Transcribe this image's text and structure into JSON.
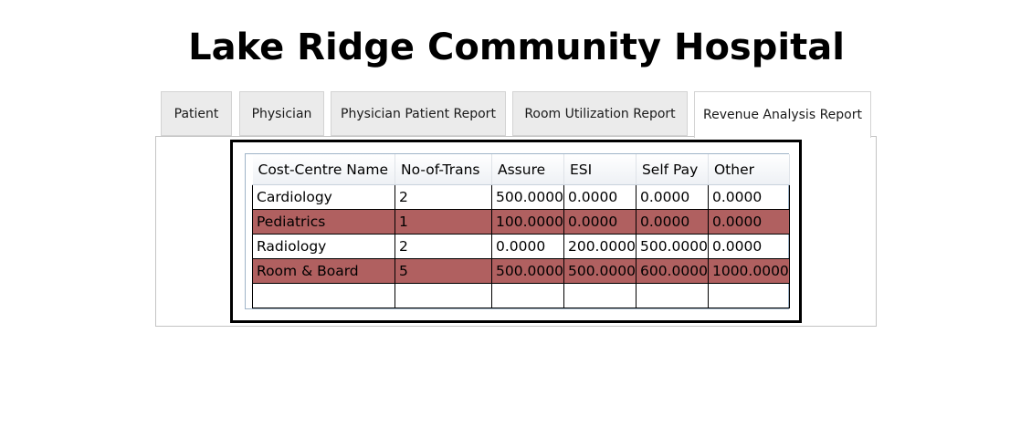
{
  "app": {
    "title": "Lake Ridge Community Hospital"
  },
  "tabs": [
    {
      "label": "Patient"
    },
    {
      "label": "Physician"
    },
    {
      "label": "Physician Patient Report"
    },
    {
      "label": "Room Utilization Report"
    },
    {
      "label": "Revenue Analysis Report",
      "selected": true
    }
  ],
  "grid": {
    "columns": [
      "Cost-Centre Name",
      "No-of-Trans",
      "Assure",
      "ESI",
      "Self Pay",
      "Other"
    ],
    "rows": [
      [
        "Cardiology",
        "2",
        "500.0000",
        "0.0000",
        "0.0000",
        "0.0000"
      ],
      [
        "Pediatrics",
        "1",
        "100.0000",
        "0.0000",
        "0.0000",
        "0.0000"
      ],
      [
        "Radiology",
        "2",
        "0.0000",
        "200.0000",
        "500.0000",
        "0.0000"
      ],
      [
        "Room & Board",
        "5",
        "500.0000",
        "500.0000",
        "600.0000",
        "1000.0000"
      ]
    ]
  },
  "colors": {
    "alternate_row": "#b06060",
    "tab_inactive": "#ebebeb",
    "tab_active": "#ffffff"
  }
}
